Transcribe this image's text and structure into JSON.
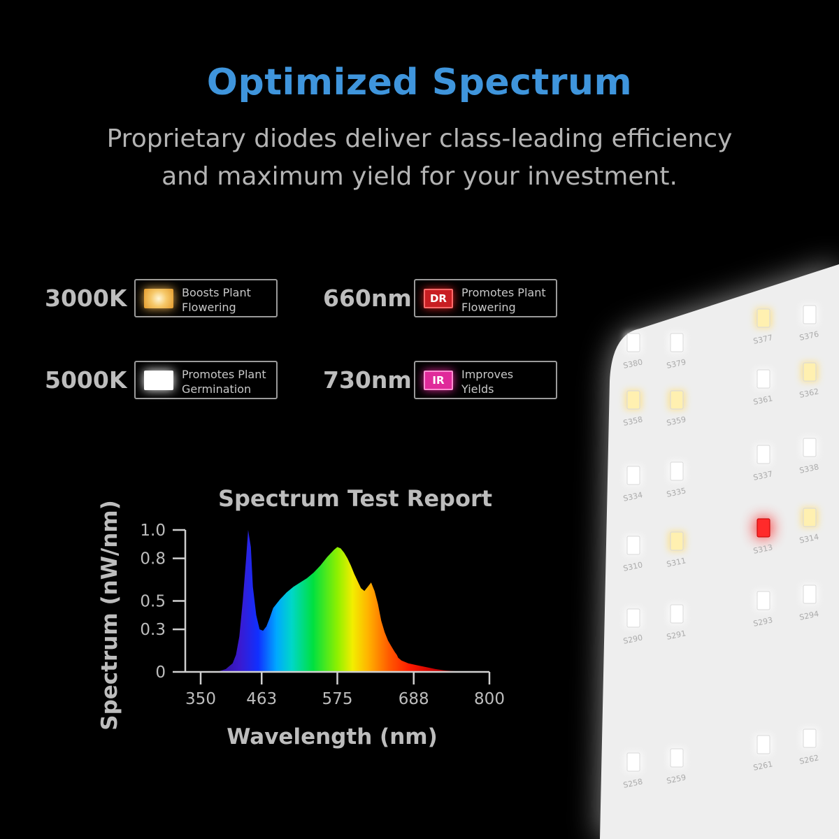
{
  "header": {
    "title": "Optimized Spectrum",
    "subtitle_line1": "Proprietary diodes deliver class-leading efficiency",
    "subtitle_line2": "and maximum yield for your investment.",
    "title_color": "#3f95dc"
  },
  "legend": [
    {
      "value": "3000K",
      "line1": "Boosts Plant",
      "line2": "Flowering",
      "swatch": "warm-white",
      "code": "",
      "color": "#f2b550"
    },
    {
      "value": "660nm",
      "line1": "Promotes Plant",
      "line2": "Flowering",
      "swatch": "deep-red",
      "code": "DR",
      "color": "#d42020"
    },
    {
      "value": "5000K",
      "line1": "Promotes Plant",
      "line2": "Germination",
      "swatch": "cool-white",
      "code": "",
      "color": "#ffffff"
    },
    {
      "value": "730nm",
      "line1": "Improves",
      "line2": "Yields",
      "swatch": "infrared",
      "code": "IR",
      "color": "#e02a9a"
    }
  ],
  "led_board": {
    "labels": [
      "S380",
      "S379",
      "S377",
      "S376",
      "S358",
      "S359",
      "S361",
      "S362",
      "S334",
      "S335",
      "S337",
      "S338",
      "S310",
      "S311",
      "S313",
      "S314",
      "S290",
      "S291",
      "S293",
      "S294",
      "S258",
      "S259",
      "S261",
      "S262"
    ]
  },
  "chart_data": {
    "type": "area",
    "title": "Spectrum Test Report",
    "xlabel": "Wavelength (nm)",
    "ylabel": "Spectrum (nW/nm)",
    "xlim": [
      350,
      800
    ],
    "ylim": [
      0,
      1.0
    ],
    "x_ticks": [
      350,
      463,
      575,
      688,
      800
    ],
    "y_ticks": [
      0,
      0.3,
      0.5,
      0.8,
      1.0
    ],
    "x_tick_labels": [
      "350",
      "463",
      "575",
      "688",
      "800"
    ],
    "y_tick_labels": [
      "0",
      "0.3",
      "0.5",
      "0.8",
      "1.0"
    ],
    "grid": false,
    "x": [
      380,
      400,
      410,
      420,
      425,
      430,
      435,
      440,
      443,
      447,
      450,
      455,
      460,
      465,
      470,
      475,
      480,
      490,
      500,
      510,
      520,
      530,
      540,
      550,
      560,
      570,
      575,
      580,
      585,
      590,
      595,
      600,
      605,
      610,
      615,
      620,
      625,
      630,
      635,
      640,
      645,
      650,
      655,
      660,
      663,
      665,
      670,
      680,
      690,
      700,
      710,
      720,
      735,
      750,
      770,
      790,
      800
    ],
    "values": [
      0,
      0.005,
      0.02,
      0.06,
      0.12,
      0.25,
      0.5,
      0.8,
      1.0,
      0.88,
      0.6,
      0.4,
      0.3,
      0.29,
      0.32,
      0.38,
      0.45,
      0.51,
      0.56,
      0.6,
      0.63,
      0.66,
      0.7,
      0.75,
      0.81,
      0.86,
      0.88,
      0.87,
      0.84,
      0.8,
      0.75,
      0.69,
      0.64,
      0.59,
      0.57,
      0.6,
      0.63,
      0.57,
      0.48,
      0.36,
      0.28,
      0.22,
      0.18,
      0.14,
      0.12,
      0.1,
      0.08,
      0.06,
      0.05,
      0.04,
      0.03,
      0.02,
      0.01,
      0.005,
      0.002,
      0,
      0
    ]
  }
}
